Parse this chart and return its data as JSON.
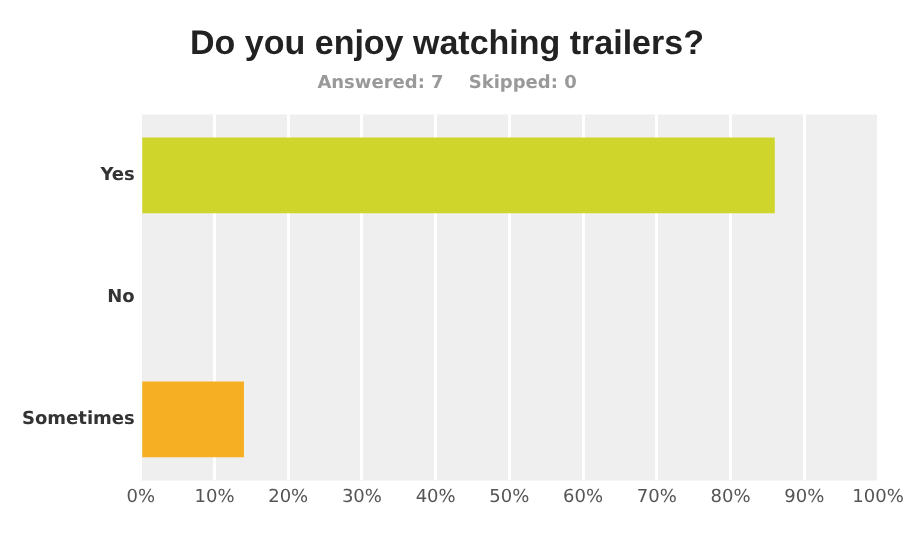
{
  "chart_data": {
    "type": "bar",
    "orientation": "horizontal",
    "title": "Do you enjoy watching trailers?",
    "subtitle": "Answered: 7    Skipped: 0",
    "categories": [
      "Yes",
      "No",
      "Sometimes"
    ],
    "values": [
      86,
      0,
      14
    ],
    "colors": [
      "#cfd52a",
      "#9e9e9e",
      "#f6ae22"
    ],
    "xlim": [
      0,
      100
    ],
    "xticks": [
      {
        "value": 0,
        "label": "0%"
      },
      {
        "value": 10,
        "label": "10%"
      },
      {
        "value": 20,
        "label": "20%"
      },
      {
        "value": 30,
        "label": "30%"
      },
      {
        "value": 40,
        "label": "40%"
      },
      {
        "value": 50,
        "label": "50%"
      },
      {
        "value": 60,
        "label": "60%"
      },
      {
        "value": 70,
        "label": "70%"
      },
      {
        "value": 80,
        "label": "80%"
      },
      {
        "value": 90,
        "label": "90%"
      },
      {
        "value": 100,
        "label": "100%"
      }
    ],
    "grid": "x"
  }
}
